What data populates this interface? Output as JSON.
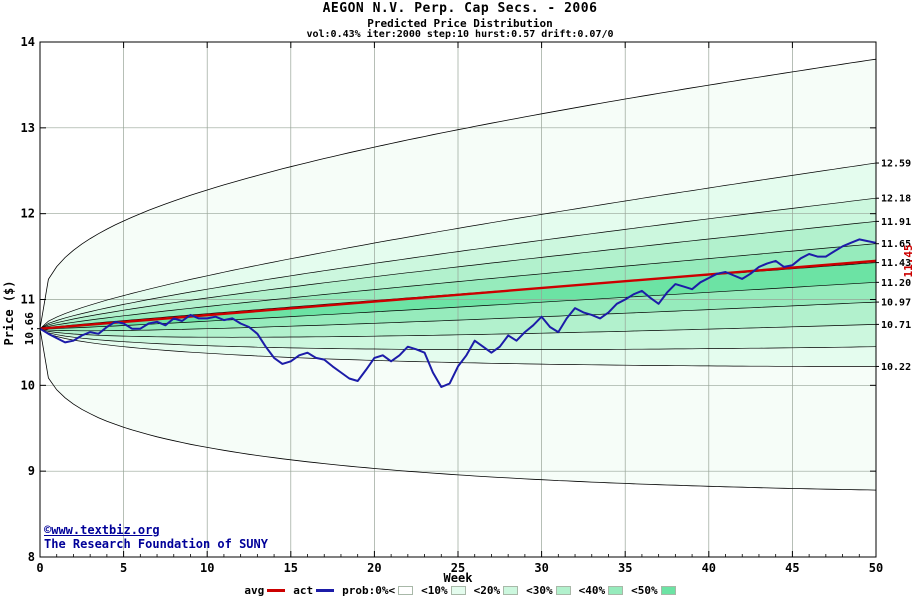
{
  "footer": {
    "site": "©www.textbiz.org",
    "org": "The Research Foundation of SUNY",
    "color": "#000099"
  },
  "chart_data": {
    "type": "line",
    "title": "AEGON N.V. Perp. Cap Secs. - 2006",
    "subtitle": "Predicted Price Distribution",
    "params": "vol:0.43% iter:2000 step:10 hurst:0.57 drift:0.07/0",
    "xlabel": "Week",
    "ylabel": "Price ($)",
    "xlim": [
      0,
      50
    ],
    "ylim": [
      8,
      14
    ],
    "x_ticks": [
      0,
      5,
      10,
      15,
      20,
      25,
      30,
      35,
      40,
      45,
      50
    ],
    "y_ticks": [
      8,
      9,
      10,
      11,
      12,
      13,
      14
    ],
    "grid": true,
    "start": {
      "week": 0,
      "price": 10.66,
      "label": "10.66"
    },
    "avg_line": {
      "name": "avg",
      "color": "#cc0000",
      "end_price": 11.45,
      "end_label": "11.45"
    },
    "actual_line": {
      "name": "act",
      "color": "#1c1ca8",
      "x_start": 0,
      "x_step": 0.5,
      "values": [
        10.66,
        10.6,
        10.55,
        10.5,
        10.52,
        10.58,
        10.62,
        10.6,
        10.68,
        10.74,
        10.72,
        10.66,
        10.66,
        10.72,
        10.74,
        10.7,
        10.78,
        10.75,
        10.82,
        10.78,
        10.78,
        10.8,
        10.76,
        10.78,
        10.72,
        10.68,
        10.6,
        10.45,
        10.32,
        10.25,
        10.28,
        10.35,
        10.38,
        10.32,
        10.3,
        10.22,
        10.15,
        10.08,
        10.05,
        10.18,
        10.32,
        10.35,
        10.28,
        10.35,
        10.45,
        10.42,
        10.38,
        10.15,
        9.98,
        10.02,
        10.22,
        10.35,
        10.52,
        10.45,
        10.38,
        10.45,
        10.58,
        10.52,
        10.62,
        10.7,
        10.8,
        10.68,
        10.62,
        10.78,
        10.9,
        10.85,
        10.82,
        10.78,
        10.85,
        10.95,
        11.0,
        11.06,
        11.1,
        11.02,
        10.95,
        11.08,
        11.18,
        11.15,
        11.12,
        11.2,
        11.25,
        11.3,
        11.32,
        11.28,
        11.24,
        11.3,
        11.38,
        11.42,
        11.45,
        11.38,
        11.4,
        11.48,
        11.53,
        11.5,
        11.5,
        11.56,
        11.62,
        11.66,
        11.7,
        11.68,
        11.66
      ]
    },
    "envelope": {
      "name": "prob:0%<",
      "fill": "#f6fdf8",
      "top_end": 13.8,
      "bottom_end": 8.78,
      "exponent": 0.32
    },
    "band_exponent": 0.6,
    "bands": [
      {
        "name": "<10%",
        "fill": "#e4fcee",
        "top_end": 12.59,
        "bottom_end": 10.22
      },
      {
        "name": "<20%",
        "fill": "#ccf7de",
        "top_end": 12.18,
        "bottom_end": 10.45
      },
      {
        "name": "<30%",
        "fill": "#b2f1cd",
        "top_end": 11.91,
        "bottom_end": 10.71
      },
      {
        "name": "<40%",
        "fill": "#96ebbc",
        "top_end": 11.65,
        "bottom_end": 10.97
      },
      {
        "name": "<50%",
        "fill": "#6ce3a4",
        "top_end": 11.43,
        "bottom_end": 11.2
      }
    ],
    "right_axis_labels": [
      {
        "value": 12.59,
        "label": "12.59"
      },
      {
        "value": 12.18,
        "label": "12.18"
      },
      {
        "value": 11.91,
        "label": "11.91"
      },
      {
        "value": 11.65,
        "label": "11.65"
      },
      {
        "value": 11.43,
        "label": "11.43"
      },
      {
        "value": 11.2,
        "label": "11.20"
      },
      {
        "value": 10.97,
        "label": "10.97"
      },
      {
        "value": 10.71,
        "label": "10.71"
      },
      {
        "value": 10.22,
        "label": "10.22"
      }
    ],
    "legend": {
      "position": "bottom",
      "items": [
        {
          "label": "avg",
          "type": "line",
          "color": "#cc0000"
        },
        {
          "label": "act",
          "type": "line",
          "color": "#1c1ca8"
        },
        {
          "label": "prob:0%<",
          "type": "swatch",
          "color": "#ffffff"
        },
        {
          "label": "<10%",
          "type": "swatch",
          "color": "#e4fcee"
        },
        {
          "label": "<20%",
          "type": "swatch",
          "color": "#ccf7de"
        },
        {
          "label": "<30%",
          "type": "swatch",
          "color": "#b2f1cd"
        },
        {
          "label": "<40%",
          "type": "swatch",
          "color": "#96ebbc"
        },
        {
          "label": "<50%",
          "type": "swatch",
          "color": "#6ce3a4"
        }
      ]
    }
  }
}
